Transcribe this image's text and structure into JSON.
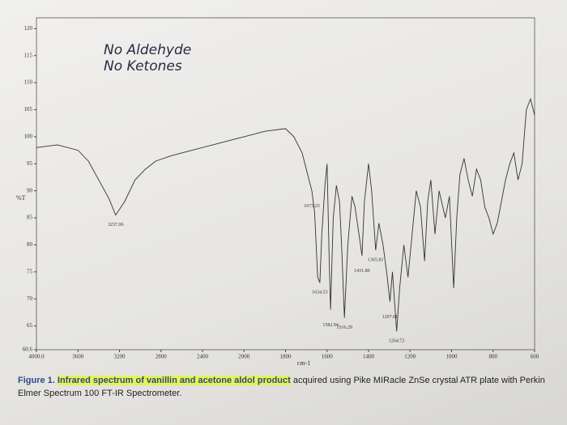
{
  "chart_data": {
    "type": "line",
    "annotations": [
      "No Aldehyde",
      "No Ketones"
    ],
    "x_label": "cm-1",
    "y_label": "%T",
    "x": [
      4000,
      3800,
      3600,
      3500,
      3400,
      3300,
      3237.06,
      3150,
      3050,
      2950,
      2850,
      2700,
      2500,
      2300,
      2100,
      2000,
      1900,
      1800,
      1760,
      1720,
      1690,
      1673.25,
      1660,
      1645,
      1634.53,
      1625,
      1610,
      1600,
      1590,
      1582.94,
      1570,
      1555,
      1540,
      1530,
      1516.29,
      1500,
      1480,
      1465,
      1450,
      1431.8,
      1420,
      1400,
      1385,
      1365.81,
      1350,
      1330,
      1310,
      1297.01,
      1285,
      1264.72,
      1250,
      1230,
      1210,
      1190,
      1170,
      1150,
      1130,
      1115,
      1100,
      1080,
      1060,
      1030,
      1010,
      990,
      975,
      960,
      940,
      920,
      900,
      880,
      860,
      840,
      820,
      800,
      780,
      760,
      740,
      720,
      700,
      680,
      660,
      640,
      620,
      600
    ],
    "values": [
      98,
      98.5,
      97.5,
      95.5,
      92,
      88.5,
      85.5,
      88,
      92,
      94,
      95.5,
      96.5,
      97.5,
      98.5,
      99.5,
      100,
      101,
      101.5,
      100,
      97,
      92.5,
      90,
      86,
      74,
      73,
      82,
      91,
      95,
      78,
      68,
      85,
      91,
      88,
      80,
      66.5,
      80,
      89,
      87,
      83,
      78,
      88,
      95,
      90,
      79,
      84,
      80,
      74,
      69.5,
      75,
      64,
      72,
      80,
      74,
      82,
      90,
      87,
      77,
      88,
      92,
      82,
      90,
      85,
      89,
      72,
      85,
      93,
      96,
      92,
      89,
      94,
      92,
      87,
      85,
      82,
      84,
      88,
      92,
      95,
      97,
      92,
      95,
      105,
      107,
      104
    ],
    "color": "#333333",
    "peaks": [
      3237.06,
      1673.25,
      1634.53,
      1582.94,
      1516.29,
      {
        "value": 1431.8,
        "label": "1431.80"
      },
      1365.81,
      1297.01,
      1264.72
    ],
    "xlim": [
      4000,
      600
    ],
    "xticks": [
      {
        "value": 4000,
        "label": "4000.0"
      },
      3600,
      3200,
      2800,
      2400,
      2000,
      1800,
      1600,
      1400,
      1200,
      1000,
      800,
      600
    ],
    "ylim": [
      60.6,
      122
    ],
    "yticks": [
      60.6,
      65,
      70,
      75,
      80,
      85,
      90,
      95,
      100,
      105,
      110,
      115,
      120
    ],
    "caption": {
      "lead": "Figure 1.",
      "highlight": "Infrared spectrum of vanillin and acetone aldol product",
      "rest": "acquired using Pike MIRacle ZnSe crystal ATR plate with Perkin Elmer Spectrum 100 FT-IR Spectrometer."
    }
  }
}
